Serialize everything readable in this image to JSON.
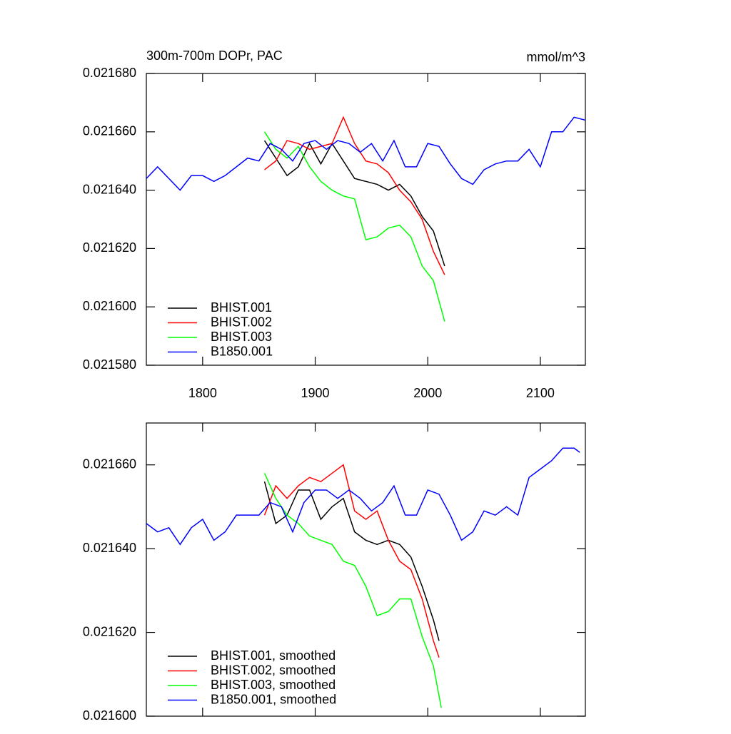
{
  "chart_data": [
    {
      "type": "line",
      "title": "300m-700m DOPr, PAC",
      "right_title": "mmol/m^3",
      "xlim": [
        1750,
        2140
      ],
      "xticks": [
        1800,
        1900,
        2000,
        2100
      ],
      "xtick_labels": true,
      "ylim": [
        0.02158,
        0.02168
      ],
      "yticks": [
        {
          "value": 0.02158,
          "label": "0.021580"
        },
        {
          "value": 0.0216,
          "label": "0.021600"
        },
        {
          "value": 0.02162,
          "label": "0.021620"
        },
        {
          "value": 0.02164,
          "label": "0.021640"
        },
        {
          "value": 0.02166,
          "label": "0.021660"
        },
        {
          "value": 0.02168,
          "label": "0.021680"
        }
      ],
      "legend": "lower left",
      "series": [
        {
          "name": "BHIST.001",
          "color": "#000000",
          "x": [
            1855,
            1865,
            1875,
            1885,
            1895,
            1905,
            1915,
            1925,
            1935,
            1945,
            1955,
            1965,
            1975,
            1985,
            1995,
            2005,
            2015
          ],
          "values": [
            0.021657,
            0.021651,
            0.021645,
            0.021648,
            0.021656,
            0.021649,
            0.021656,
            0.02165,
            0.021644,
            0.021643,
            0.021642,
            0.02164,
            0.021642,
            0.021638,
            0.021631,
            0.021626,
            0.021614
          ]
        },
        {
          "name": "BHIST.002",
          "color": "#ff0000",
          "x": [
            1855,
            1865,
            1875,
            1885,
            1895,
            1905,
            1915,
            1925,
            1935,
            1945,
            1955,
            1965,
            1975,
            1985,
            1995,
            2005,
            2015
          ],
          "values": [
            0.021647,
            0.02165,
            0.021657,
            0.021656,
            0.021654,
            0.021655,
            0.021656,
            0.021665,
            0.021656,
            0.02165,
            0.021649,
            0.021646,
            0.02164,
            0.021636,
            0.02163,
            0.021619,
            0.021611
          ]
        },
        {
          "name": "BHIST.003",
          "color": "#00ff00",
          "x": [
            1855,
            1865,
            1875,
            1885,
            1895,
            1905,
            1915,
            1925,
            1935,
            1945,
            1955,
            1965,
            1975,
            1985,
            1995,
            2005,
            2015
          ],
          "values": [
            0.02166,
            0.021654,
            0.021651,
            0.021655,
            0.021648,
            0.021643,
            0.02164,
            0.021638,
            0.021637,
            0.021623,
            0.021624,
            0.021627,
            0.021628,
            0.021624,
            0.021614,
            0.021609,
            0.021595
          ]
        },
        {
          "name": "B1850.001",
          "color": "#0000ff",
          "x": [
            1750,
            1760,
            1770,
            1780,
            1790,
            1800,
            1810,
            1820,
            1830,
            1840,
            1850,
            1860,
            1870,
            1880,
            1890,
            1900,
            1910,
            1920,
            1930,
            1940,
            1950,
            1960,
            1970,
            1980,
            1990,
            2000,
            2010,
            2020,
            2030,
            2040,
            2050,
            2060,
            2070,
            2080,
            2090,
            2100,
            2110,
            2120,
            2130,
            2140
          ],
          "values": [
            0.021644,
            0.021648,
            0.021644,
            0.02164,
            0.021645,
            0.021645,
            0.021643,
            0.021645,
            0.021648,
            0.021651,
            0.02165,
            0.021656,
            0.021654,
            0.02165,
            0.021656,
            0.021657,
            0.021654,
            0.021657,
            0.021656,
            0.021653,
            0.021656,
            0.02165,
            0.021657,
            0.021648,
            0.021648,
            0.021656,
            0.021655,
            0.021649,
            0.021644,
            0.021642,
            0.021647,
            0.021649,
            0.02165,
            0.02165,
            0.021654,
            0.021648,
            0.02166,
            0.02166,
            0.021665,
            0.021664
          ]
        }
      ]
    },
    {
      "type": "line",
      "xlim": [
        1750,
        2140
      ],
      "xticks": [
        1800,
        1900,
        2000,
        2100
      ],
      "xtick_labels": false,
      "ylim": [
        0.0216,
        0.02167
      ],
      "yticks": [
        {
          "value": 0.0216,
          "label": "0.021600"
        },
        {
          "value": 0.02162,
          "label": "0.021620"
        },
        {
          "value": 0.02164,
          "label": "0.021640"
        },
        {
          "value": 0.02166,
          "label": "0.021660"
        }
      ],
      "legend": "lower left",
      "series": [
        {
          "name": "BHIST.001, smoothed",
          "color": "#000000",
          "x": [
            1855,
            1865,
            1875,
            1885,
            1895,
            1905,
            1915,
            1925,
            1935,
            1945,
            1955,
            1965,
            1975,
            1985,
            1995,
            2005,
            2010
          ],
          "values": [
            0.021656,
            0.021646,
            0.021648,
            0.021654,
            0.021654,
            0.021647,
            0.02165,
            0.021652,
            0.021644,
            0.021642,
            0.021641,
            0.021642,
            0.021641,
            0.021638,
            0.021631,
            0.021623,
            0.021618
          ]
        },
        {
          "name": "BHIST.002, smoothed",
          "color": "#ff0000",
          "x": [
            1855,
            1865,
            1875,
            1885,
            1895,
            1905,
            1915,
            1925,
            1935,
            1945,
            1955,
            1965,
            1975,
            1985,
            1995,
            2005,
            2010
          ],
          "values": [
            0.021648,
            0.021655,
            0.021652,
            0.021655,
            0.021657,
            0.021656,
            0.021658,
            0.02166,
            0.021649,
            0.021647,
            0.021649,
            0.021642,
            0.021637,
            0.021635,
            0.021628,
            0.021618,
            0.021614
          ]
        },
        {
          "name": "BHIST.003, smoothed",
          "color": "#00ff00",
          "x": [
            1855,
            1865,
            1875,
            1885,
            1895,
            1905,
            1915,
            1925,
            1935,
            1945,
            1955,
            1965,
            1975,
            1985,
            1995,
            2005,
            2012
          ],
          "values": [
            0.021658,
            0.021652,
            0.021648,
            0.021646,
            0.021643,
            0.021642,
            0.021641,
            0.021637,
            0.021636,
            0.021631,
            0.021624,
            0.021625,
            0.021628,
            0.021628,
            0.021619,
            0.021612,
            0.021602
          ]
        },
        {
          "name": "B1850.001, smoothed",
          "color": "#0000ff",
          "x": [
            1750,
            1760,
            1770,
            1780,
            1790,
            1800,
            1810,
            1820,
            1830,
            1840,
            1850,
            1860,
            1870,
            1880,
            1890,
            1900,
            1910,
            1920,
            1930,
            1940,
            1950,
            1960,
            1970,
            1980,
            1990,
            2000,
            2010,
            2020,
            2030,
            2040,
            2050,
            2060,
            2070,
            2080,
            2090,
            2100,
            2110,
            2120,
            2130,
            2135
          ],
          "values": [
            0.021646,
            0.021644,
            0.021645,
            0.021641,
            0.021645,
            0.021647,
            0.021642,
            0.021644,
            0.021648,
            0.021648,
            0.021648,
            0.021651,
            0.02165,
            0.021644,
            0.021651,
            0.021654,
            0.021654,
            0.021652,
            0.021654,
            0.021652,
            0.021649,
            0.021651,
            0.021655,
            0.021648,
            0.021648,
            0.021654,
            0.021653,
            0.021648,
            0.021642,
            0.021644,
            0.021649,
            0.021648,
            0.02165,
            0.021648,
            0.021657,
            0.021659,
            0.021661,
            0.021664,
            0.021664,
            0.021663
          ]
        }
      ]
    }
  ]
}
